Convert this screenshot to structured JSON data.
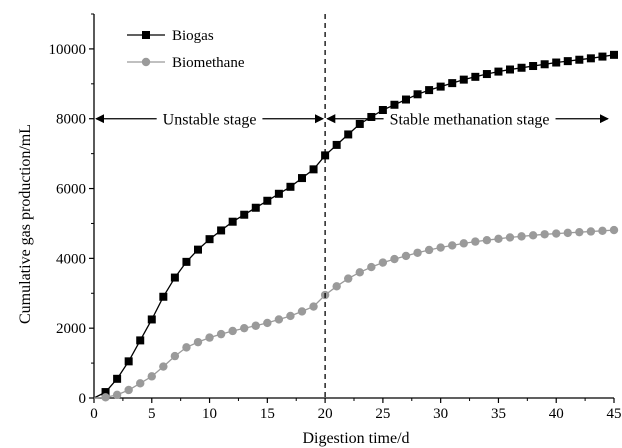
{
  "chart_data": {
    "type": "line",
    "xlabel": "Digestion time/d",
    "ylabel": "Cumulative gas production/mL",
    "xlim": [
      0,
      45
    ],
    "ylim": [
      0,
      11000
    ],
    "xticks": [
      0,
      5,
      10,
      15,
      20,
      25,
      30,
      35,
      40,
      45
    ],
    "yticks": [
      0,
      2000,
      4000,
      6000,
      8000,
      10000
    ],
    "grid": false,
    "legend_position": "top-left",
    "x": [
      1,
      2,
      3,
      4,
      5,
      6,
      7,
      8,
      9,
      10,
      11,
      12,
      13,
      14,
      15,
      16,
      17,
      18,
      19,
      20,
      21,
      22,
      23,
      24,
      25,
      26,
      27,
      28,
      29,
      30,
      31,
      32,
      33,
      34,
      35,
      36,
      37,
      38,
      39,
      40,
      41,
      42,
      43,
      44,
      45
    ],
    "series": [
      {
        "name": "Biogas",
        "marker": "square",
        "color": "#000000",
        "values": [
          170,
          550,
          1050,
          1650,
          2250,
          2900,
          3450,
          3900,
          4250,
          4550,
          4800,
          5050,
          5250,
          5450,
          5650,
          5850,
          6050,
          6300,
          6550,
          6950,
          7250,
          7550,
          7850,
          8050,
          8250,
          8400,
          8550,
          8700,
          8820,
          8920,
          9020,
          9120,
          9200,
          9280,
          9350,
          9410,
          9460,
          9510,
          9560,
          9610,
          9650,
          9690,
          9730,
          9780,
          9830
        ]
      },
      {
        "name": "Biomethane",
        "marker": "circle",
        "color": "#9a9a9a",
        "values": [
          20,
          90,
          230,
          420,
          620,
          900,
          1200,
          1450,
          1600,
          1730,
          1830,
          1920,
          2000,
          2070,
          2150,
          2250,
          2350,
          2480,
          2620,
          2950,
          3200,
          3420,
          3600,
          3750,
          3880,
          3980,
          4070,
          4160,
          4240,
          4310,
          4370,
          4430,
          4480,
          4520,
          4560,
          4600,
          4630,
          4660,
          4690,
          4710,
          4730,
          4750,
          4770,
          4790,
          4810
        ]
      }
    ],
    "annotations": {
      "divider_x": 20,
      "arrow_y": 8000,
      "unstable_label": "Unstable stage",
      "stable_label": "Stable methanation stage"
    }
  }
}
